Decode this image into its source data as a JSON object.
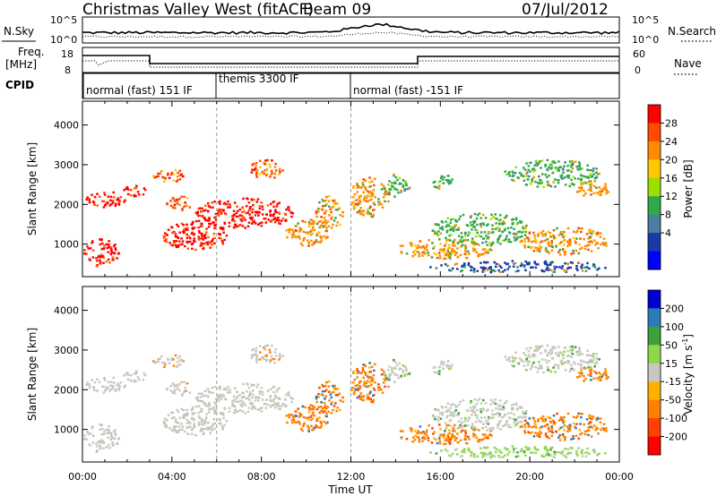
{
  "header": {
    "station": "Christmas Valley West (fitACF)",
    "beam": "Beam 09",
    "date": "07/Jul/2012"
  },
  "noise_panel": {
    "left_label": "N.Sky",
    "right_label": "N.Search",
    "left_ticks": [
      "10^5",
      "10^0"
    ],
    "right_ticks": [
      "10^5",
      "10^0"
    ]
  },
  "freq_panel": {
    "left_label_1": "Freq.",
    "left_label_2": "[MHz]",
    "right_label": "Nave",
    "left_ticks": [
      "18",
      "8"
    ],
    "right_ticks": [
      "60",
      "0"
    ]
  },
  "cpid_panel": {
    "label": "CPID",
    "modes": [
      "normal (fast) 151 IF",
      "themis 3300 IF",
      "normal (fast) -151 IF"
    ]
  },
  "chart_data": [
    {
      "type": "heatmap",
      "name": "power",
      "ylabel": "Slant Range [km]",
      "yticks": [
        1000,
        2000,
        3000,
        4000
      ],
      "ylim": [
        180,
        4600
      ],
      "xlim": [
        0,
        24
      ],
      "colorbar_label": "Power [dB]",
      "colorbar_ticks": [
        "28",
        "24",
        "20",
        "16",
        "12",
        "8",
        "4"
      ],
      "colorbar_colors": [
        "#ff0000",
        "#ff4a00",
        "#ff8c00",
        "#ffc800",
        "#9be000",
        "#2faa4a",
        "#4a7ea0",
        "#1a3aa8",
        "#0000ff"
      ]
    },
    {
      "type": "heatmap",
      "name": "velocity",
      "ylabel": "Slant Range [km]",
      "yticks": [
        1000,
        2000,
        3000,
        4000
      ],
      "ylim": [
        180,
        4600
      ],
      "xlim": [
        0,
        24
      ],
      "xticks": [
        "00:00",
        "04:00",
        "08:00",
        "12:00",
        "16:00",
        "20:00",
        "00:00"
      ],
      "xlabel": "Time UT",
      "colorbar_label": "Velocity [m s^-1]",
      "colorbar_ticks": [
        "200",
        "100",
        "50",
        "15",
        "-15",
        "-50",
        "-100",
        "-200"
      ],
      "colorbar_colors": [
        "#0000d0",
        "#2b7bb8",
        "#3ca03c",
        "#8fd84a",
        "#c8c8c0",
        "#ffb000",
        "#ff8000",
        "#ff4000",
        "#ff0000"
      ]
    }
  ]
}
